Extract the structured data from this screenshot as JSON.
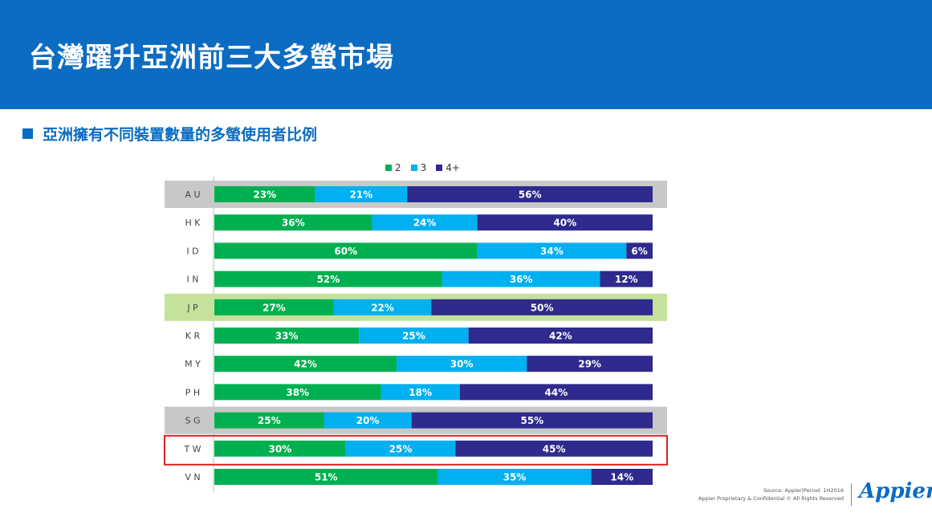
{
  "header": {
    "title": "台灣躍升亞洲前三大多螢市場"
  },
  "section": {
    "subtitle": "亞洲擁有不同裝置數量的多螢使用者比例"
  },
  "chart_data": {
    "type": "bar",
    "orientation": "horizontal",
    "stacked": true,
    "categories": [
      "AU",
      "HK",
      "ID",
      "IN",
      "JP",
      "KR",
      "MY",
      "PH",
      "SG",
      "TW",
      "VN"
    ],
    "category_labels": [
      "A U",
      "H K",
      "I D",
      "I N",
      "J P",
      "K R",
      "M Y",
      "P H",
      "S G",
      "T W",
      "V N"
    ],
    "series": [
      {
        "name": "2",
        "color": "#00b050",
        "values": [
          23,
          36,
          60,
          52,
          27,
          33,
          42,
          38,
          25,
          30,
          51
        ]
      },
      {
        "name": "3",
        "color": "#00b0f0",
        "values": [
          21,
          24,
          34,
          36,
          22,
          25,
          30,
          18,
          20,
          25,
          35
        ]
      },
      {
        "name": "4+",
        "color": "#2e2a8e",
        "values": [
          56,
          40,
          6,
          12,
          50,
          42,
          29,
          44,
          55,
          45,
          14
        ]
      }
    ],
    "value_suffix": "%",
    "legend_position": "top",
    "row_highlights": {
      "AU": "#c8c8c8",
      "JP": "#c4e29b",
      "SG": "#c8c8c8"
    },
    "outlined_row": "TW",
    "outline_color": "#e02020"
  },
  "footer": {
    "source": "Source: Appier|Period: 1H2016",
    "confidential": "Appier Proprietary & Confidential © All Rights Reserved",
    "logo": "Appier"
  }
}
